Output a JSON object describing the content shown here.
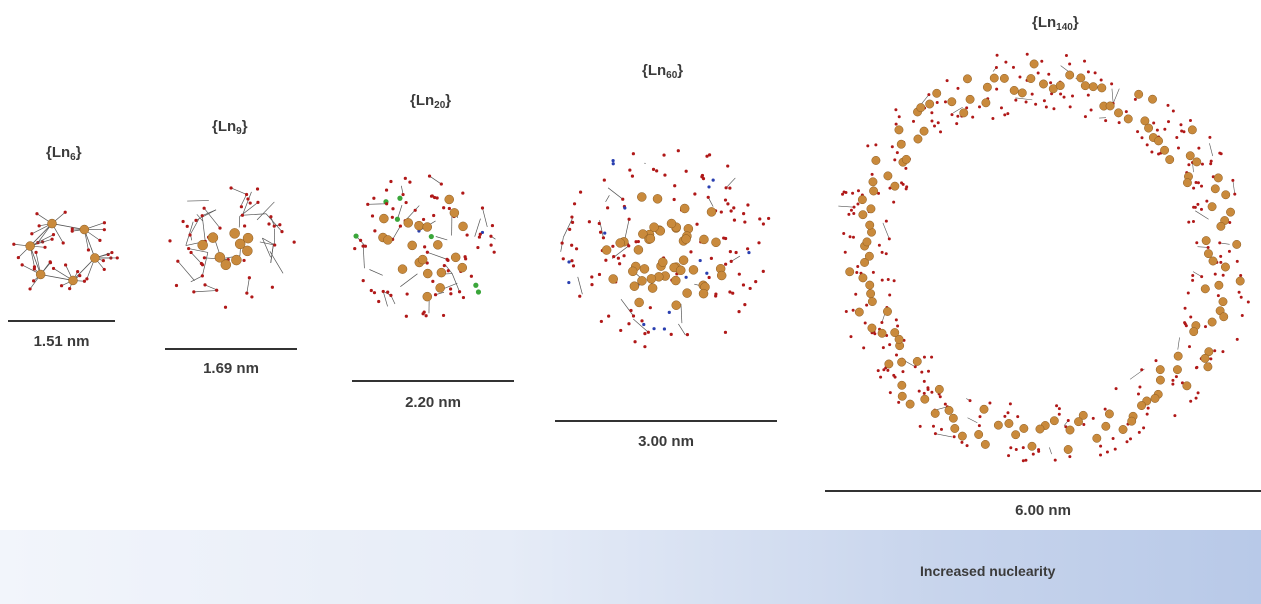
{
  "clusters": [
    {
      "id": "ln6",
      "name_prefix": "{Ln",
      "subscript": "6",
      "name_suffix": "}",
      "size_label": "1.51 nm"
    },
    {
      "id": "ln9",
      "name_prefix": "{Ln",
      "subscript": "9",
      "name_suffix": "}",
      "size_label": "1.69 nm"
    },
    {
      "id": "ln20",
      "name_prefix": "{Ln",
      "subscript": "20",
      "name_suffix": "}",
      "size_label": "2.20 nm"
    },
    {
      "id": "ln60",
      "name_prefix": "{Ln",
      "subscript": "60",
      "name_suffix": "}",
      "size_label": "3.00 nm"
    },
    {
      "id": "ln140",
      "name_prefix": "{Ln",
      "subscript": "140",
      "name_suffix": "}",
      "size_label": "6.00 nm"
    }
  ],
  "nuclearity_band": {
    "label": "Increased nuclearity"
  },
  "colors": {
    "metal_atom": "#c98a3c",
    "oxygen_atom": "#b01818",
    "nitrogen_atom": "#2a3fb0",
    "chlorine_atom": "#3aa63a",
    "bond": "#555555",
    "scale_bar": "#333333"
  }
}
